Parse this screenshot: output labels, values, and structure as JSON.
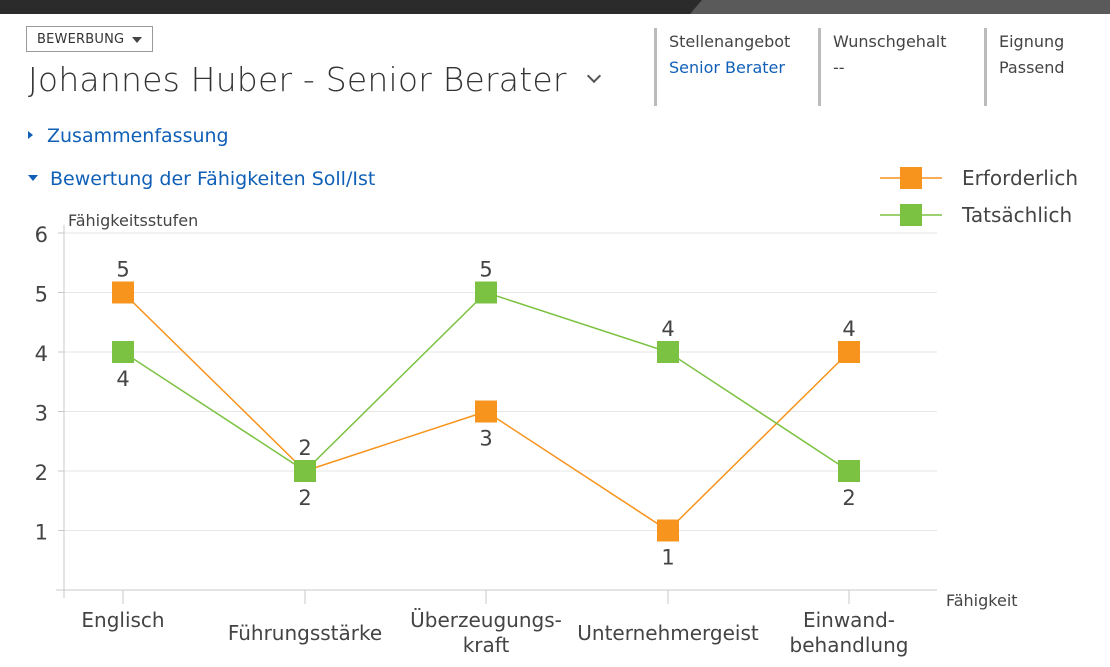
{
  "header": {
    "entity_label": "BEWERBUNG",
    "title": "Johannes Huber - Senior Berater",
    "fields": [
      {
        "label": "Stellenangebot",
        "value": "Senior Berater",
        "is_link": true
      },
      {
        "label": "Wunschgehalt",
        "value": "--",
        "is_link": false
      },
      {
        "label": "Eignung",
        "value": "Passend",
        "is_link": false
      }
    ]
  },
  "sections": {
    "summary": {
      "label": "Zusammenfassung",
      "expanded": false
    },
    "skills": {
      "label": "Bewertung der Fähigkeiten Soll/Ist",
      "expanded": true
    }
  },
  "icons": {
    "entity_dropdown": "caret-down-icon",
    "title_menu": "chevron-down-icon",
    "collapsed": "triangle-right-icon",
    "expanded": "triangle-down-icon"
  },
  "chart_data": {
    "type": "line",
    "ylabel": "Fähigkeitsstufen",
    "xlabel": "Fähigkeit",
    "ylim": [
      0,
      6
    ],
    "yticks": [
      1,
      2,
      3,
      4,
      5,
      6
    ],
    "grid": true,
    "legend_position": "top-right",
    "categories": [
      {
        "lines": [
          "Englisch"
        ]
      },
      {
        "lines": [
          "Führungsstärke"
        ]
      },
      {
        "lines": [
          "Überzeugungs-",
          "kraft"
        ]
      },
      {
        "lines": [
          "Unternehmergeist"
        ]
      },
      {
        "lines": [
          "Einwand-",
          "behandlung"
        ]
      }
    ],
    "series": [
      {
        "name": "Erforderlich",
        "color": "#f7941d",
        "values": [
          5,
          2,
          3,
          1,
          4
        ]
      },
      {
        "name": "Tatsächlich",
        "color": "#7cc242",
        "values": [
          4,
          2,
          5,
          4,
          2
        ]
      }
    ]
  }
}
